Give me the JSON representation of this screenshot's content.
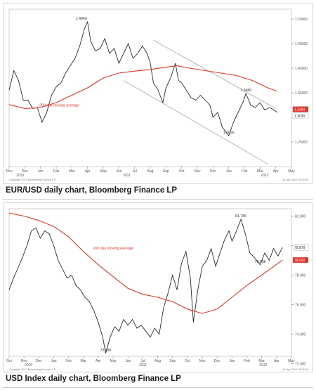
{
  "captions": {
    "chart1": "EUR/USD daily chart, Bloomberg Finance LP",
    "chart2": "USD Index daily chart, Bloomberg Finance LP"
  },
  "colors": {
    "price": "#2a2a2a",
    "ma": "#e0352b",
    "channel": "#b0b0b0",
    "axis": "#888888"
  },
  "chart_data": [
    {
      "type": "line",
      "title": "",
      "ylim": [
        1.2,
        1.52
      ],
      "y_ticks": [
        "1.50000",
        "1.45000",
        "1.40000",
        "1.35000",
        "1.30000",
        "1.25000"
      ],
      "y_tick_values": [
        1.5,
        1.45,
        1.4,
        1.35,
        1.3,
        1.25
      ],
      "x_month_labels": [
        "Nov",
        "Dec",
        "Jan",
        "Feb",
        "Mar",
        "Apr",
        "May",
        "Jun",
        "Jul",
        "Aug",
        "Sep",
        "Oct",
        "Nov",
        "Dec",
        "Jan",
        "Feb",
        "Mar",
        "Apr",
        "May"
      ],
      "x_year_labels": [
        {
          "label": "2010",
          "month_index": 0.7
        },
        {
          "label": "2011",
          "month_index": 7.5
        },
        {
          "label": "2012",
          "month_index": 16.3
        }
      ],
      "price_labels": [
        "1.3030",
        "1.3164"
      ],
      "copyright": "Copyright 2012 Bloomberg Finance L.P.",
      "date_stamp": "10-Apr-2012 10:02:00",
      "annotations": [
        {
          "text": "1.4940",
          "month_index": 4.6,
          "value": 1.494
        },
        {
          "text": "1.3486",
          "month_index": 15.1,
          "value": 1.3486
        },
        {
          "text": "1.2625",
          "month_index": 14.0,
          "value": 1.2625
        },
        {
          "text": "200 day moving average",
          "month_index": 3.2,
          "value": 1.318,
          "color": "#e0352b"
        }
      ],
      "channel_lines": [
        {
          "start": [
            9.2,
            1.457
          ],
          "end": [
            17.0,
            1.318
          ]
        },
        {
          "start": [
            7.3,
            1.375
          ],
          "end": [
            16.5,
            1.205
          ]
        }
      ],
      "series": [
        {
          "role": "price",
          "points": [
            [
              0.0,
              1.355
            ],
            [
              0.3,
              1.395
            ],
            [
              0.6,
              1.375
            ],
            [
              0.9,
              1.335
            ],
            [
              1.2,
              1.335
            ],
            [
              1.5,
              1.318
            ],
            [
              1.8,
              1.32
            ],
            [
              2.1,
              1.29
            ],
            [
              2.4,
              1.31
            ],
            [
              2.7,
              1.345
            ],
            [
              3.0,
              1.362
            ],
            [
              3.3,
              1.37
            ],
            [
              3.6,
              1.39
            ],
            [
              3.9,
              1.405
            ],
            [
              4.2,
              1.42
            ],
            [
              4.5,
              1.445
            ],
            [
              4.8,
              1.48
            ],
            [
              5.0,
              1.494
            ],
            [
              5.2,
              1.455
            ],
            [
              5.5,
              1.435
            ],
            [
              5.8,
              1.44
            ],
            [
              6.1,
              1.46
            ],
            [
              6.4,
              1.43
            ],
            [
              6.7,
              1.44
            ],
            [
              7.0,
              1.41
            ],
            [
              7.3,
              1.43
            ],
            [
              7.6,
              1.45
            ],
            [
              7.9,
              1.42
            ],
            [
              8.2,
              1.43
            ],
            [
              8.5,
              1.445
            ],
            [
              8.8,
              1.43
            ],
            [
              9.0,
              1.41
            ],
            [
              9.2,
              1.37
            ],
            [
              9.5,
              1.355
            ],
            [
              9.8,
              1.33
            ],
            [
              10.0,
              1.36
            ],
            [
              10.3,
              1.38
            ],
            [
              10.6,
              1.41
            ],
            [
              10.8,
              1.375
            ],
            [
              11.0,
              1.37
            ],
            [
              11.3,
              1.355
            ],
            [
              11.6,
              1.34
            ],
            [
              11.9,
              1.335
            ],
            [
              12.2,
              1.345
            ],
            [
              12.5,
              1.335
            ],
            [
              12.8,
              1.325
            ],
            [
              13.0,
              1.3
            ],
            [
              13.3,
              1.31
            ],
            [
              13.6,
              1.28
            ],
            [
              14.0,
              1.2625
            ],
            [
              14.3,
              1.29
            ],
            [
              14.6,
              1.31
            ],
            [
              14.9,
              1.33
            ],
            [
              15.1,
              1.3486
            ],
            [
              15.4,
              1.325
            ],
            [
              15.7,
              1.32
            ],
            [
              16.0,
              1.33
            ],
            [
              16.3,
              1.315
            ],
            [
              16.6,
              1.32
            ],
            [
              16.9,
              1.315
            ],
            [
              17.1,
              1.31
            ]
          ]
        },
        {
          "role": "moving_average",
          "name": "200 day moving average",
          "points": [
            [
              0.0,
              1.326
            ],
            [
              1.0,
              1.318
            ],
            [
              2.0,
              1.32
            ],
            [
              3.0,
              1.33
            ],
            [
              4.0,
              1.345
            ],
            [
              5.0,
              1.36
            ],
            [
              6.0,
              1.38
            ],
            [
              7.0,
              1.39
            ],
            [
              8.0,
              1.394
            ],
            [
              9.0,
              1.397
            ],
            [
              10.0,
              1.402
            ],
            [
              10.7,
              1.405
            ],
            [
              11.5,
              1.4
            ],
            [
              12.5,
              1.395
            ],
            [
              13.5,
              1.39
            ],
            [
              14.5,
              1.385
            ],
            [
              15.5,
              1.375
            ],
            [
              16.5,
              1.36
            ],
            [
              17.1,
              1.353
            ]
          ]
        }
      ]
    },
    {
      "type": "line",
      "title": "",
      "ylim": [
        72.5,
        82.5
      ],
      "y_ticks": [
        "82.000",
        "80.000",
        "78.000",
        "76.000",
        "74.000",
        "72.000"
      ],
      "y_tick_values": [
        82,
        80,
        78,
        76,
        74,
        72
      ],
      "x_month_labels": [
        "Oct",
        "Nov",
        "Dec",
        "Jan",
        "Feb",
        "Mar",
        "Apr",
        "May",
        "Jun",
        "Jul",
        "Aug",
        "Sep",
        "Oct",
        "Nov",
        "Dec",
        "Jan",
        "Feb",
        "Mar",
        "Apr",
        "May"
      ],
      "x_year_labels": [
        {
          "label": "2010",
          "month_index": 1.3
        },
        {
          "label": "2011",
          "month_index": 9.0
        },
        {
          "label": "2012",
          "month_index": 17.1
        }
      ],
      "price_labels": [
        "79.870",
        "79.020"
      ],
      "copyright": "Copyright 2012 Bloomberg Finance L.P.",
      "date_stamp": "10-Apr-2012 10:02:00",
      "annotations": [
        {
          "text": "81.785",
          "month_index": 15.6,
          "value": 81.785
        },
        {
          "text": "78.696",
          "month_index": 16.9,
          "value": 78.696
        },
        {
          "text": "72.696",
          "month_index": 6.5,
          "value": 72.696
        },
        {
          "text": "200 day moving average",
          "month_index": 7.0,
          "value": 79.6,
          "color": "#e0352b"
        }
      ],
      "channel_lines": [],
      "series": [
        {
          "role": "price",
          "points": [
            [
              0.0,
              77.0
            ],
            [
              0.3,
              77.8
            ],
            [
              0.6,
              78.5
            ],
            [
              0.9,
              79.2
            ],
            [
              1.2,
              80.0
            ],
            [
              1.5,
              81.0
            ],
            [
              1.8,
              81.2
            ],
            [
              2.1,
              80.5
            ],
            [
              2.4,
              81.0
            ],
            [
              2.7,
              80.8
            ],
            [
              3.0,
              80.0
            ],
            [
              3.3,
              79.0
            ],
            [
              3.6,
              78.4
            ],
            [
              3.9,
              77.8
            ],
            [
              4.2,
              78.0
            ],
            [
              4.5,
              77.3
            ],
            [
              4.8,
              77.0
            ],
            [
              5.1,
              76.5
            ],
            [
              5.4,
              76.2
            ],
            [
              5.7,
              75.6
            ],
            [
              6.0,
              74.8
            ],
            [
              6.3,
              73.8
            ],
            [
              6.5,
              72.696
            ],
            [
              6.8,
              73.8
            ],
            [
              7.1,
              74.5
            ],
            [
              7.4,
              74.2
            ],
            [
              7.7,
              75.0
            ],
            [
              8.0,
              74.6
            ],
            [
              8.3,
              75.0
            ],
            [
              8.6,
              74.4
            ],
            [
              8.9,
              74.6
            ],
            [
              9.2,
              74.2
            ],
            [
              9.5,
              73.8
            ],
            [
              9.8,
              74.4
            ],
            [
              10.1,
              74.0
            ],
            [
              10.4,
              75.8
            ],
            [
              10.7,
              76.8
            ],
            [
              11.0,
              78.0
            ],
            [
              11.3,
              77.0
            ],
            [
              11.6,
              78.8
            ],
            [
              11.9,
              79.6
            ],
            [
              12.2,
              77.8
            ],
            [
              12.4,
              74.8
            ],
            [
              12.7,
              77.0
            ],
            [
              13.0,
              78.6
            ],
            [
              13.3,
              79.0
            ],
            [
              13.6,
              79.8
            ],
            [
              13.9,
              78.6
            ],
            [
              14.2,
              79.5
            ],
            [
              14.5,
              80.4
            ],
            [
              14.8,
              81.0
            ],
            [
              15.0,
              80.3
            ],
            [
              15.3,
              81.0
            ],
            [
              15.6,
              81.785
            ],
            [
              15.9,
              80.8
            ],
            [
              16.2,
              79.5
            ],
            [
              16.5,
              79.2
            ],
            [
              16.9,
              78.696
            ],
            [
              17.2,
              79.5
            ],
            [
              17.5,
              79.0
            ],
            [
              17.8,
              79.8
            ],
            [
              18.1,
              79.3
            ],
            [
              18.4,
              79.87
            ]
          ]
        },
        {
          "role": "moving_average",
          "name": "200 day moving average",
          "points": [
            [
              0.0,
              82.2
            ],
            [
              1.0,
              82.0
            ],
            [
              2.0,
              81.7
            ],
            [
              3.0,
              81.3
            ],
            [
              4.0,
              80.6
            ],
            [
              5.0,
              79.6
            ],
            [
              6.0,
              78.7
            ],
            [
              7.0,
              77.9
            ],
            [
              8.0,
              77.1
            ],
            [
              9.0,
              76.7
            ],
            [
              10.0,
              76.5
            ],
            [
              11.0,
              76.2
            ],
            [
              12.0,
              75.7
            ],
            [
              13.0,
              75.4
            ],
            [
              14.0,
              75.7
            ],
            [
              15.0,
              76.5
            ],
            [
              16.0,
              77.3
            ],
            [
              17.0,
              78.0
            ],
            [
              18.4,
              79.02
            ]
          ]
        }
      ]
    }
  ]
}
